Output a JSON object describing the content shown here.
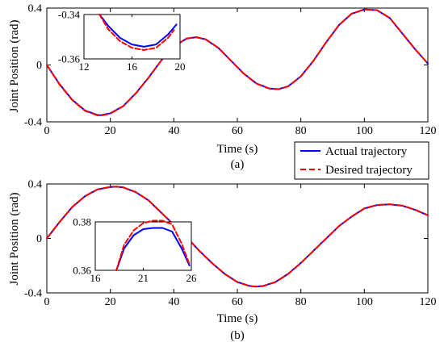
{
  "figure": {
    "legend": {
      "entries": [
        {
          "label": "Actual trajectory",
          "color": "#0000ff",
          "style": "solid"
        },
        {
          "label": "Desired trajectory",
          "color": "#ff0000",
          "style": "dashed"
        }
      ],
      "placement": "between panels, right"
    }
  },
  "chart_data": [
    {
      "type": "line",
      "subtitle": "(a)",
      "xlabel": "Time (s)",
      "ylabel": "Joint Position (rad)",
      "xlim": [
        0,
        120
      ],
      "ylim": [
        -0.4,
        0.4
      ],
      "xticks": [
        0,
        20,
        40,
        60,
        80,
        100,
        120
      ],
      "yticks": [
        -0.4,
        0,
        0.4
      ],
      "ytick_labels": [
        "-0.4",
        "0",
        "0.4"
      ],
      "grid": false,
      "series": [
        {
          "name": "Actual trajectory",
          "color": "#0000ff",
          "style": "solid",
          "x": [
            0,
            4,
            8,
            12,
            16,
            17,
            20,
            24,
            28,
            32,
            36,
            40,
            44,
            47,
            50,
            54,
            58,
            62,
            66,
            70,
            73,
            76,
            80,
            84,
            88,
            92,
            96,
            100,
            104,
            108,
            112,
            116,
            120
          ],
          "y": [
            0.0,
            -0.135,
            -0.245,
            -0.32,
            -0.352,
            -0.353,
            -0.34,
            -0.29,
            -0.2,
            -0.09,
            0.03,
            0.13,
            0.185,
            0.195,
            0.18,
            0.12,
            0.03,
            -0.06,
            -0.13,
            -0.165,
            -0.17,
            -0.15,
            -0.08,
            0.03,
            0.16,
            0.28,
            0.36,
            0.39,
            0.385,
            0.33,
            0.22,
            0.11,
            0.01
          ]
        },
        {
          "name": "Desired trajectory",
          "color": "#ff0000",
          "style": "dashed",
          "x": [
            0,
            4,
            8,
            12,
            16,
            17,
            20,
            24,
            28,
            32,
            36,
            40,
            44,
            47,
            50,
            54,
            58,
            62,
            66,
            70,
            73,
            76,
            80,
            84,
            88,
            92,
            96,
            100,
            104,
            108,
            112,
            116,
            120
          ],
          "y": [
            0.0,
            -0.137,
            -0.247,
            -0.322,
            -0.355,
            -0.356,
            -0.342,
            -0.291,
            -0.201,
            -0.091,
            0.03,
            0.13,
            0.186,
            0.196,
            0.181,
            0.121,
            0.03,
            -0.061,
            -0.131,
            -0.166,
            -0.171,
            -0.151,
            -0.081,
            0.03,
            0.161,
            0.281,
            0.361,
            0.391,
            0.386,
            0.331,
            0.221,
            0.111,
            0.01
          ]
        }
      ],
      "inset": {
        "xlim": [
          12,
          20
        ],
        "ylim": [
          -0.36,
          -0.34
        ],
        "xticks": [
          12,
          16,
          20
        ],
        "yticks": [
          -0.36,
          -0.34
        ],
        "ytick_labels": [
          "-0.36",
          "-0.34"
        ],
        "series": [
          {
            "name": "Actual trajectory",
            "color": "#0000ff",
            "style": "solid",
            "x": [
              13.3,
              14,
              15,
              16,
              17,
              18,
              19,
              19.7
            ],
            "y": [
              -0.34,
              -0.345,
              -0.3505,
              -0.3535,
              -0.3545,
              -0.3535,
              -0.349,
              -0.3445
            ]
          },
          {
            "name": "Desired trajectory",
            "color": "#ff0000",
            "style": "dashed",
            "x": [
              13.3,
              14,
              15,
              16,
              17,
              18,
              19,
              19.5
            ],
            "y": [
              -0.34,
              -0.3465,
              -0.352,
              -0.355,
              -0.356,
              -0.355,
              -0.3505,
              -0.347
            ]
          }
        ]
      }
    },
    {
      "type": "line",
      "subtitle": "(b)",
      "xlabel": "Time (s)",
      "ylabel": "Joint Position (rad)",
      "xlim": [
        0,
        120
      ],
      "ylim": [
        -0.4,
        0.4
      ],
      "xticks": [
        0,
        20,
        40,
        60,
        80,
        100,
        120
      ],
      "yticks": [
        -0.4,
        0,
        0.4
      ],
      "ytick_labels": [
        "-0.4",
        "0",
        "0.4"
      ],
      "grid": false,
      "series": [
        {
          "name": "Actual trajectory",
          "color": "#0000ff",
          "style": "solid",
          "x": [
            0,
            4,
            8,
            12,
            16,
            20,
            22,
            24,
            28,
            32,
            36,
            40,
            44,
            48,
            52,
            56,
            60,
            64,
            66,
            68,
            72,
            76,
            80,
            84,
            88,
            92,
            96,
            100,
            104,
            108,
            112,
            116,
            120
          ],
          "y": [
            0.0,
            0.12,
            0.23,
            0.31,
            0.36,
            0.378,
            0.38,
            0.375,
            0.34,
            0.28,
            0.19,
            0.1,
            0.01,
            -0.09,
            -0.18,
            -0.26,
            -0.32,
            -0.35,
            -0.353,
            -0.35,
            -0.32,
            -0.26,
            -0.18,
            -0.09,
            0.0,
            0.09,
            0.16,
            0.22,
            0.245,
            0.25,
            0.24,
            0.21,
            0.17
          ]
        },
        {
          "name": "Desired trajectory",
          "color": "#ff0000",
          "style": "dashed",
          "x": [
            0,
            4,
            8,
            12,
            16,
            20,
            22,
            24,
            28,
            32,
            36,
            40,
            44,
            48,
            52,
            56,
            60,
            64,
            66,
            68,
            72,
            76,
            80,
            84,
            88,
            92,
            96,
            100,
            104,
            108,
            112,
            116,
            120
          ],
          "y": [
            0.0,
            0.121,
            0.231,
            0.311,
            0.361,
            0.379,
            0.381,
            0.376,
            0.341,
            0.281,
            0.191,
            0.1,
            0.01,
            -0.091,
            -0.181,
            -0.261,
            -0.321,
            -0.351,
            -0.354,
            -0.351,
            -0.321,
            -0.261,
            -0.181,
            -0.091,
            0.0,
            0.091,
            0.161,
            0.221,
            0.246,
            0.251,
            0.241,
            0.211,
            0.171
          ]
        }
      ],
      "inset": {
        "xlim": [
          16,
          26
        ],
        "ylim": [
          0.36,
          0.38
        ],
        "xticks": [
          16,
          21,
          26
        ],
        "yticks": [
          0.36,
          0.38
        ],
        "ytick_labels": [
          "0.36",
          "0.38"
        ],
        "series": [
          {
            "name": "Actual trajectory",
            "color": "#0000ff",
            "style": "solid",
            "x": [
              18.2,
              19,
              20,
              21,
              22,
              23,
              24,
              25,
              25.8
            ],
            "y": [
              0.36,
              0.369,
              0.3745,
              0.377,
              0.3775,
              0.3775,
              0.376,
              0.369,
              0.362
            ]
          },
          {
            "name": "Desired trajectory",
            "color": "#ff0000",
            "style": "dashed",
            "x": [
              18.2,
              19,
              20,
              21,
              22,
              23,
              24,
              25,
              25.8
            ],
            "y": [
              0.36,
              0.3705,
              0.3765,
              0.3795,
              0.3805,
              0.3805,
              0.379,
              0.371,
              0.3625
            ]
          }
        ]
      }
    }
  ]
}
